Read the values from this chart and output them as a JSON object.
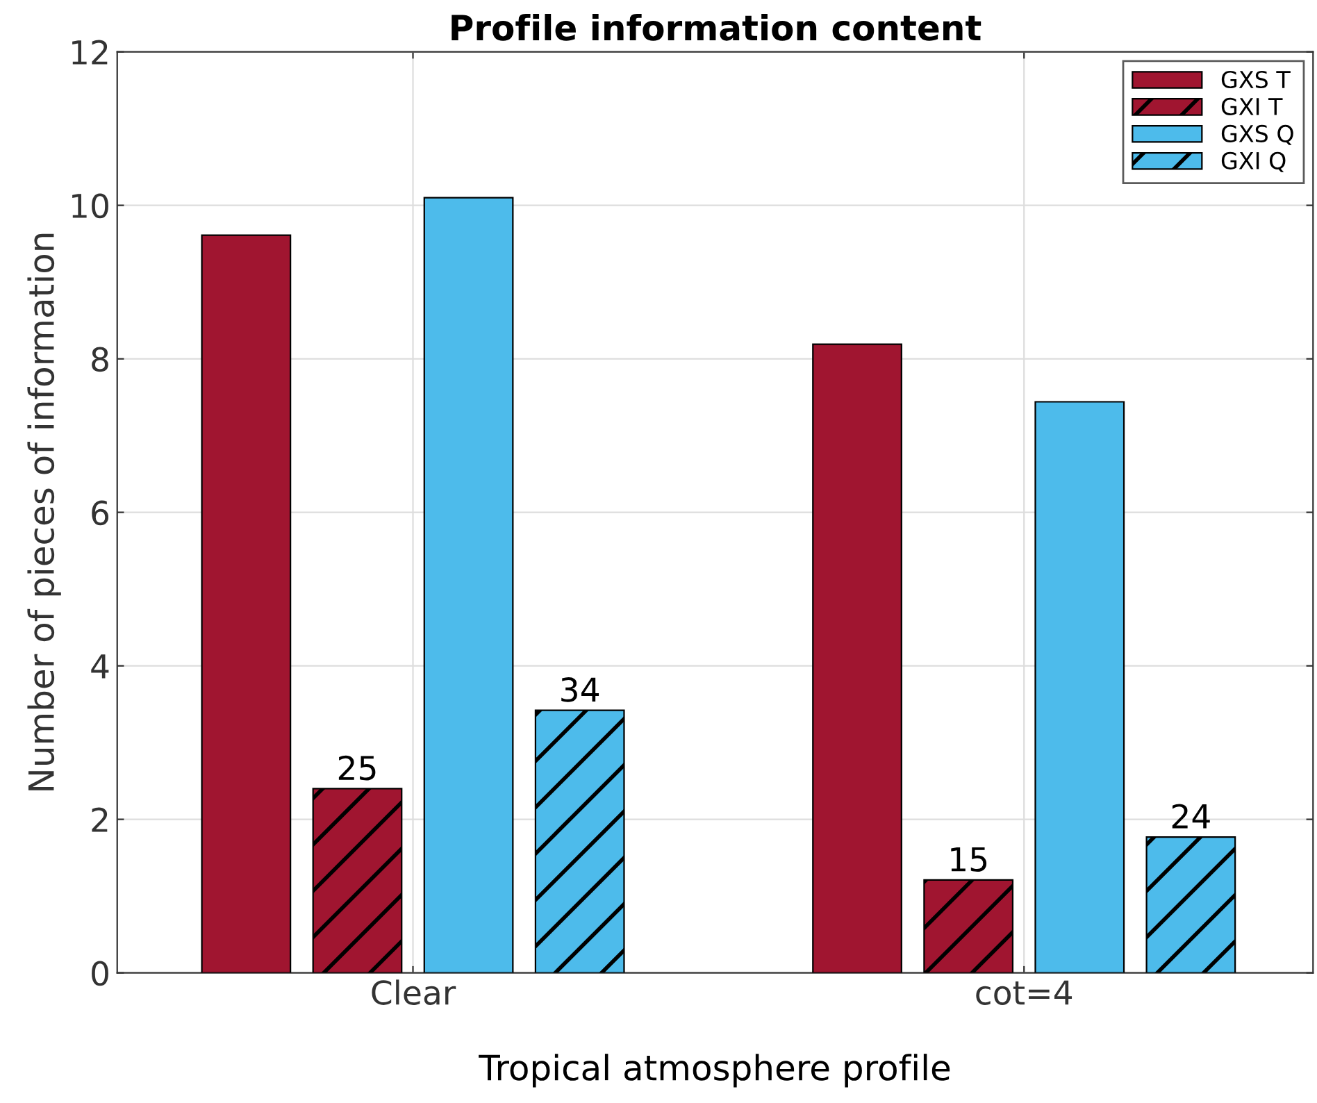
{
  "chart_data": {
    "type": "bar",
    "title": "Profile information content",
    "xlabel": "Tropical atmosphere profile",
    "ylabel": "Number of pieces of information",
    "categories": [
      "Clear",
      "cot=4"
    ],
    "series": [
      {
        "name": "GXS T",
        "color": "#a01530",
        "values": [
          9.61,
          8.19
        ]
      },
      {
        "name": "GXI T",
        "color": "#a01530",
        "values": [
          2.4,
          1.21
        ]
      },
      {
        "name": "GXS Q",
        "color": "#4dbbeb",
        "values": [
          10.1,
          7.44
        ]
      },
      {
        "name": "GXI Q",
        "color": "#4dbbeb",
        "values": [
          3.42,
          1.77
        ]
      }
    ],
    "ylim": [
      0,
      12
    ],
    "yticks": [
      0,
      2,
      4,
      6,
      8,
      10,
      12
    ],
    "grid": true,
    "legend": "top right",
    "annotations": [
      "25",
      "34",
      "15",
      "24"
    ]
  }
}
